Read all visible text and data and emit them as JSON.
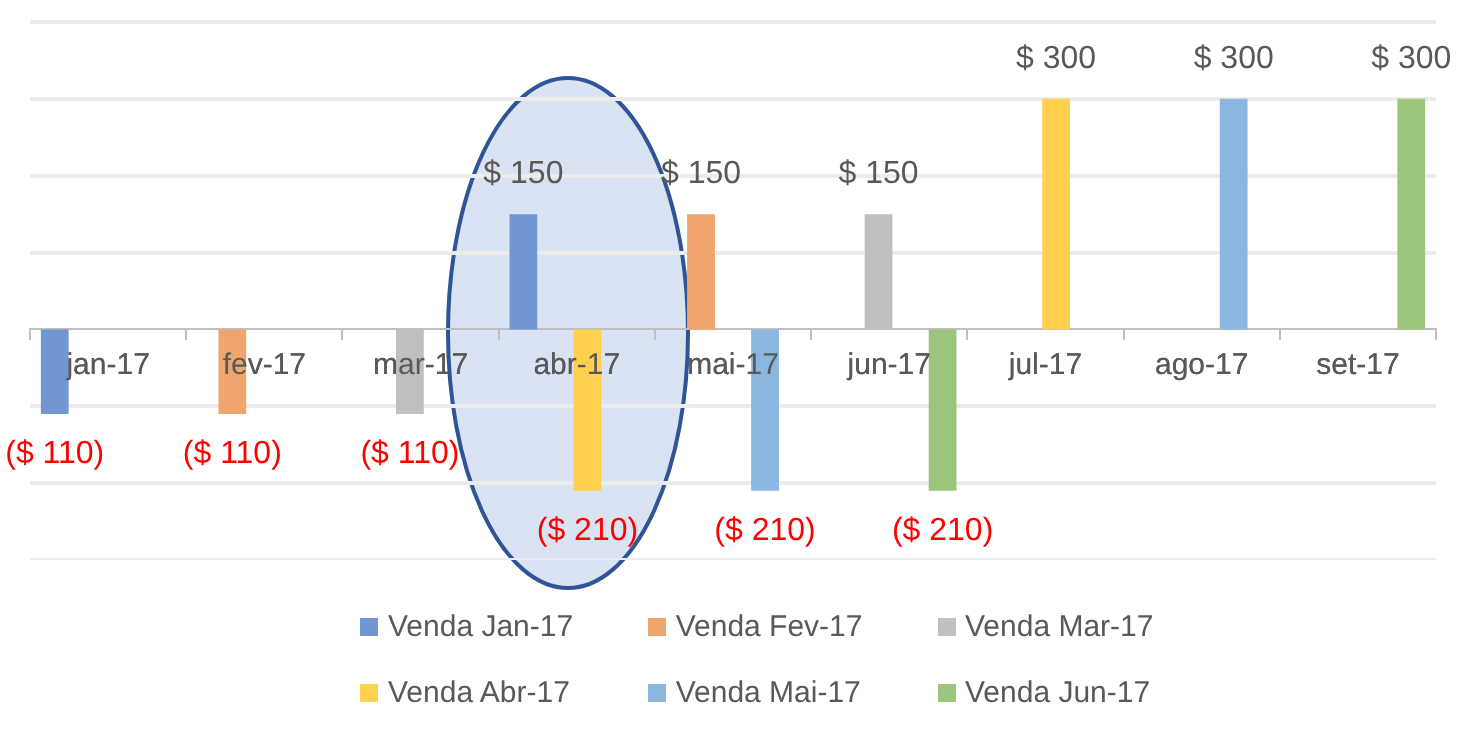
{
  "chart_data": {
    "type": "bar",
    "categories": [
      "jan-17",
      "fev-17",
      "mar-17",
      "abr-17",
      "mai-17",
      "jun-17",
      "jul-17",
      "ago-17",
      "set-17"
    ],
    "series": [
      {
        "name": "Venda Jan-17",
        "color": "#7196d4",
        "values": [
          -110,
          null,
          null,
          150,
          null,
          null,
          null,
          null,
          null
        ],
        "value_labels": [
          "($ 110)",
          null,
          null,
          "$ 150",
          null,
          null,
          null,
          null,
          null
        ]
      },
      {
        "name": "Venda Fev-17",
        "color": "#f0a46e",
        "values": [
          null,
          -110,
          null,
          null,
          150,
          null,
          null,
          null,
          null
        ],
        "value_labels": [
          null,
          "($ 110)",
          null,
          null,
          "$ 150",
          null,
          null,
          null,
          null
        ]
      },
      {
        "name": "Venda Mar-17",
        "color": "#bfbfbf",
        "values": [
          null,
          null,
          -110,
          null,
          null,
          150,
          null,
          null,
          null
        ],
        "value_labels": [
          null,
          null,
          "($ 110)",
          null,
          null,
          "$ 150",
          null,
          null,
          null
        ]
      },
      {
        "name": "Venda Abr-17",
        "color": "#ffd04d",
        "values": [
          null,
          null,
          null,
          -210,
          null,
          null,
          300,
          null,
          null
        ],
        "value_labels": [
          null,
          null,
          null,
          "($ 210)",
          null,
          null,
          "$ 300",
          null,
          null
        ]
      },
      {
        "name": "Venda Mai-17",
        "color": "#8ab6e0",
        "values": [
          null,
          null,
          null,
          null,
          -210,
          null,
          null,
          300,
          null
        ],
        "value_labels": [
          null,
          null,
          null,
          null,
          "($ 210)",
          null,
          null,
          "$ 300",
          null
        ]
      },
      {
        "name": "Venda Jun-17",
        "color": "#9bc47c",
        "values": [
          null,
          null,
          null,
          null,
          null,
          -210,
          null,
          null,
          300
        ],
        "value_labels": [
          null,
          null,
          null,
          null,
          null,
          "($ 210)",
          null,
          null,
          "$ 300"
        ]
      }
    ],
    "ylim": [
      -300,
      400
    ],
    "yticks": [
      {
        "value": -300,
        "label": null
      },
      {
        "value": -200,
        "label": null
      },
      {
        "value": -100,
        "label": null
      },
      {
        "value": 0,
        "label": null
      },
      {
        "value": 100,
        "label": null
      },
      {
        "value": 200,
        "label": null
      },
      {
        "value": 300,
        "label": null
      },
      {
        "value": 400,
        "label": null
      }
    ],
    "tick_labels": "x",
    "grid": "y",
    "legend": "bottom"
  }
}
